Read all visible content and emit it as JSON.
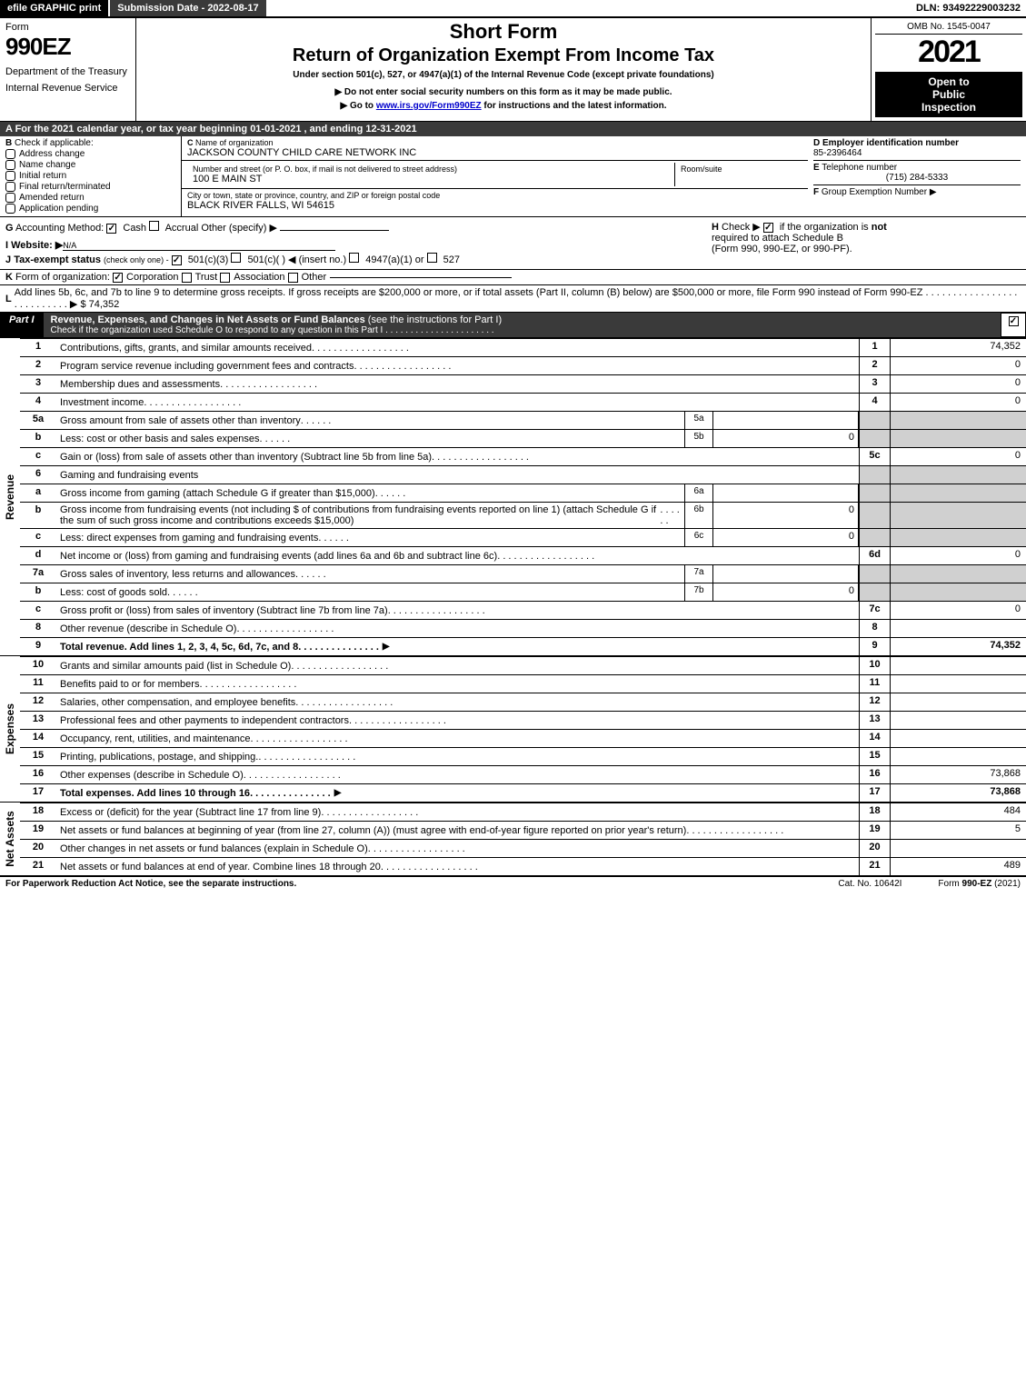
{
  "topbar": {
    "efile": "efile GRAPHIC print",
    "submission": "Submission Date - 2022-08-17",
    "dln": "DLN: 93492229003232"
  },
  "header": {
    "form_label": "Form",
    "form_number": "990EZ",
    "dept1": "Department of the Treasury",
    "dept2": "Internal Revenue Service",
    "title_short": "Short Form",
    "title_main": "Return of Organization Exempt From Income Tax",
    "title_sub": "Under section 501(c), 527, or 4947(a)(1) of the Internal Revenue Code (except private foundations)",
    "note1": "▶ Do not enter social security numbers on this form as it may be made public.",
    "note2_pre": "▶ Go to ",
    "note2_link": "www.irs.gov/Form990EZ",
    "note2_post": " for instructions and the latest information.",
    "omb": "OMB No. 1545-0047",
    "year": "2021",
    "open1": "Open to",
    "open2": "Public",
    "open3": "Inspection"
  },
  "section_a": "A  For the 2021 calendar year, or tax year beginning 01-01-2021 , and ending 12-31-2021",
  "section_b": {
    "label": "B",
    "sub": "Check if applicable:",
    "items": [
      "Address change",
      "Name change",
      "Initial return",
      "Final return/terminated",
      "Amended return",
      "Application pending"
    ]
  },
  "section_c": {
    "label": "C",
    "name_lbl": "Name of organization",
    "name": "JACKSON COUNTY CHILD CARE NETWORK INC",
    "street_lbl": "Number and street (or P. O. box, if mail is not delivered to street address)",
    "street": "100 E MAIN ST",
    "room_lbl": "Room/suite",
    "city_lbl": "City or town, state or province, country, and ZIP or foreign postal code",
    "city": "BLACK RIVER FALLS, WI  54615"
  },
  "section_d": {
    "label": "D",
    "text": "Employer identification number",
    "val": "85-2396464"
  },
  "section_e": {
    "label": "E",
    "text": "Telephone number",
    "val": "(715) 284-5333"
  },
  "section_f": {
    "label": "F",
    "text": "Group Exemption Number",
    "arrow": "▶"
  },
  "line_g": {
    "label": "G",
    "text": "Accounting Method:",
    "cash": "Cash",
    "accrual": "Accrual",
    "other": "Other (specify) ▶"
  },
  "line_h": {
    "label": "H",
    "text1": "Check ▶",
    "text2": "if the organization is ",
    "not": "not",
    "text3": "required to attach Schedule B",
    "text4": "(Form 990, 990-EZ, or 990-PF)."
  },
  "line_i": {
    "label": "I",
    "text": "Website: ▶",
    "val": "N/A"
  },
  "line_j": {
    "label": "J",
    "text": "Tax-exempt status",
    "sub": "(check only one) -",
    "opt1": "501(c)(3)",
    "opt2": "501(c)(  ) ◀ (insert no.)",
    "opt3": "4947(a)(1) or",
    "opt4": "527"
  },
  "line_k": {
    "label": "K",
    "text": "Form of organization:",
    "opts": [
      "Corporation",
      "Trust",
      "Association",
      "Other"
    ]
  },
  "line_l": {
    "label": "L",
    "text": "Add lines 5b, 6c, and 7b to line 9 to determine gross receipts. If gross receipts are $200,000 or more, or if total assets (Part II, column (B) below) are $500,000 or more, file Form 990 instead of Form 990-EZ",
    "arrow": "▶ $",
    "val": "74,352"
  },
  "part1": {
    "tag": "Part I",
    "title": "Revenue, Expenses, and Changes in Net Assets or Fund Balances",
    "sub": "(see the instructions for Part I)",
    "check_line": "Check if the organization used Schedule O to respond to any question in this Part I"
  },
  "revenue": {
    "label": "Revenue",
    "rows": [
      {
        "n": "1",
        "desc": "Contributions, gifts, grants, and similar amounts received",
        "ref": "1",
        "amt": "74,352"
      },
      {
        "n": "2",
        "desc": "Program service revenue including government fees and contracts",
        "ref": "2",
        "amt": "0"
      },
      {
        "n": "3",
        "desc": "Membership dues and assessments",
        "ref": "3",
        "amt": "0"
      },
      {
        "n": "4",
        "desc": "Investment income",
        "ref": "4",
        "amt": "0"
      },
      {
        "n": "5a",
        "desc": "Gross amount from sale of assets other than inventory",
        "sub": "5a",
        "subval": ""
      },
      {
        "n": "b",
        "desc": "Less: cost or other basis and sales expenses",
        "sub": "5b",
        "subval": "0"
      },
      {
        "n": "c",
        "desc": "Gain or (loss) from sale of assets other than inventory (Subtract line 5b from line 5a)",
        "ref": "5c",
        "amt": "0"
      },
      {
        "n": "6",
        "desc": "Gaming and fundraising events"
      },
      {
        "n": "a",
        "desc": "Gross income from gaming (attach Schedule G if greater than $15,000)",
        "sub": "6a",
        "subval": ""
      },
      {
        "n": "b",
        "desc": "Gross income from fundraising events (not including $               of contributions from fundraising events reported on line 1) (attach Schedule G if the sum of such gross income and contributions exceeds $15,000)",
        "sub": "6b",
        "subval": "0"
      },
      {
        "n": "c",
        "desc": "Less: direct expenses from gaming and fundraising events",
        "sub": "6c",
        "subval": "0"
      },
      {
        "n": "d",
        "desc": "Net income or (loss) from gaming and fundraising events (add lines 6a and 6b and subtract line 6c)",
        "ref": "6d",
        "amt": "0"
      },
      {
        "n": "7a",
        "desc": "Gross sales of inventory, less returns and allowances",
        "sub": "7a",
        "subval": ""
      },
      {
        "n": "b",
        "desc": "Less: cost of goods sold",
        "sub": "7b",
        "subval": "0"
      },
      {
        "n": "c",
        "desc": "Gross profit or (loss) from sales of inventory (Subtract line 7b from line 7a)",
        "ref": "7c",
        "amt": "0"
      },
      {
        "n": "8",
        "desc": "Other revenue (describe in Schedule O)",
        "ref": "8",
        "amt": ""
      },
      {
        "n": "9",
        "desc": "Total revenue. Add lines 1, 2, 3, 4, 5c, 6d, 7c, and 8",
        "ref": "9",
        "amt": "74,352",
        "bold": true,
        "arrow": true
      }
    ]
  },
  "expenses": {
    "label": "Expenses",
    "rows": [
      {
        "n": "10",
        "desc": "Grants and similar amounts paid (list in Schedule O)",
        "ref": "10",
        "amt": ""
      },
      {
        "n": "11",
        "desc": "Benefits paid to or for members",
        "ref": "11",
        "amt": ""
      },
      {
        "n": "12",
        "desc": "Salaries, other compensation, and employee benefits",
        "ref": "12",
        "amt": ""
      },
      {
        "n": "13",
        "desc": "Professional fees and other payments to independent contractors",
        "ref": "13",
        "amt": ""
      },
      {
        "n": "14",
        "desc": "Occupancy, rent, utilities, and maintenance",
        "ref": "14",
        "amt": ""
      },
      {
        "n": "15",
        "desc": "Printing, publications, postage, and shipping.",
        "ref": "15",
        "amt": ""
      },
      {
        "n": "16",
        "desc": "Other expenses (describe in Schedule O)",
        "ref": "16",
        "amt": "73,868"
      },
      {
        "n": "17",
        "desc": "Total expenses. Add lines 10 through 16",
        "ref": "17",
        "amt": "73,868",
        "bold": true,
        "arrow": true
      }
    ]
  },
  "netassets": {
    "label": "Net Assets",
    "rows": [
      {
        "n": "18",
        "desc": "Excess or (deficit) for the year (Subtract line 17 from line 9)",
        "ref": "18",
        "amt": "484"
      },
      {
        "n": "19",
        "desc": "Net assets or fund balances at beginning of year (from line 27, column (A)) (must agree with end-of-year figure reported on prior year's return)",
        "ref": "19",
        "amt": "5"
      },
      {
        "n": "20",
        "desc": "Other changes in net assets or fund balances (explain in Schedule O)",
        "ref": "20",
        "amt": ""
      },
      {
        "n": "21",
        "desc": "Net assets or fund balances at end of year. Combine lines 18 through 20",
        "ref": "21",
        "amt": "489"
      }
    ]
  },
  "footer": {
    "left": "For Paperwork Reduction Act Notice, see the separate instructions.",
    "mid": "Cat. No. 10642I",
    "right_pre": "Form ",
    "right_bold": "990-EZ",
    "right_post": " (2021)"
  }
}
